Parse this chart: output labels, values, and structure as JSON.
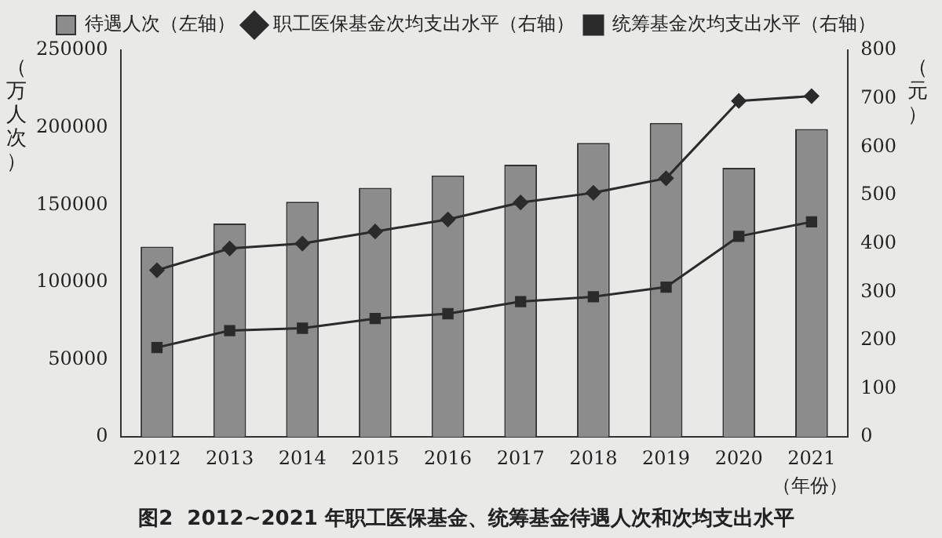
{
  "chart_data": {
    "type": "bar",
    "title": "图2  2012~2021 年职工医保基金、统筹基金待遇人次和次均支出水平",
    "xlabel": "（年份）",
    "ylabel": "（万人次）",
    "y2label": "（元）",
    "categories": [
      "2012",
      "2013",
      "2014",
      "2015",
      "2016",
      "2017",
      "2018",
      "2019",
      "2020",
      "2021"
    ],
    "series": [
      {
        "name": "待遇人次（左轴）",
        "color": "#8c8c8c",
        "values": [
          123000,
          138000,
          152000,
          161000,
          169000,
          176000,
          190000,
          203000,
          174000,
          199000
        ]
      },
      {
        "name": "职工医保基金次均支出水平（右轴）",
        "type": "line",
        "axis": "y2",
        "marker": "diamond",
        "color": "#2b2b2b",
        "values": [
          345,
          390,
          400,
          425,
          450,
          485,
          505,
          535,
          695,
          705
        ]
      },
      {
        "name": "统筹基金次均支出水平（右轴）",
        "type": "line",
        "axis": "y2",
        "marker": "square",
        "color": "#2b2b2b",
        "values": [
          185,
          220,
          225,
          245,
          255,
          280,
          290,
          310,
          415,
          445
        ]
      }
    ],
    "ylim": [
      0,
      250000
    ],
    "yticks": [
      0,
      50000,
      100000,
      150000,
      200000,
      250000
    ],
    "y2lim": [
      0,
      800
    ],
    "y2ticks": [
      0,
      100,
      200,
      300,
      400,
      500,
      600,
      700,
      800
    ],
    "grid": false,
    "legend": "top"
  }
}
